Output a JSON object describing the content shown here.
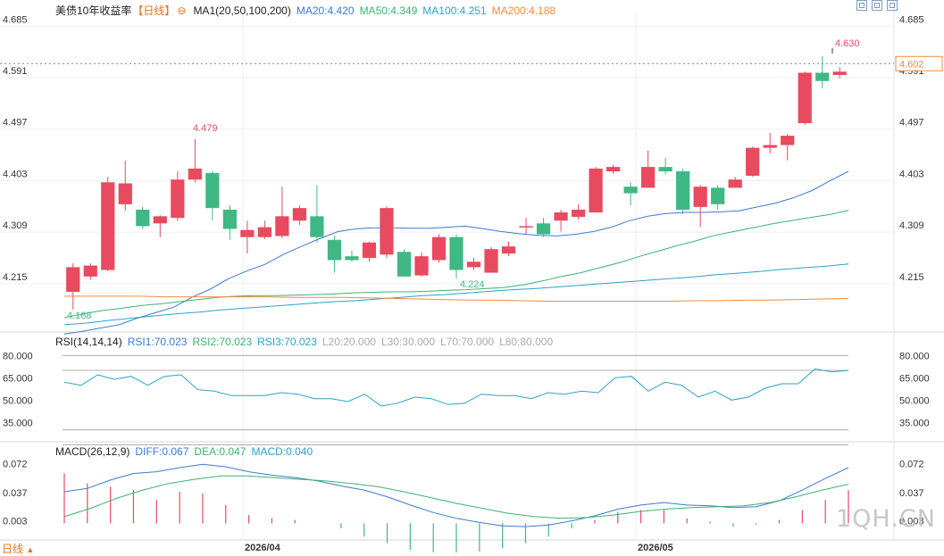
{
  "header": {
    "title": "美债10年收益率",
    "period": "【日线】",
    "ma_label": "MA1(20,50,100,200)",
    "ma20": "MA20:4.420",
    "ma50": "MA50:4.349",
    "ma100": "MA100:4.251",
    "ma200": "MA200:4.188"
  },
  "rsi": {
    "label": "RSI(14,14,14)",
    "rsi1": "RSI1:70.023",
    "rsi2": "RSI2:70.023",
    "rsi3": "RSI3:70.023",
    "l20": "L20:20.000",
    "l30": "L30:30.000",
    "l70": "L70:70.000",
    "l80": "L80:80.000"
  },
  "macd": {
    "label": "MACD(26,12,9)",
    "diff": "DIFF:0.067",
    "dea": "DEA:0.047",
    "macd": "MACD:0.040"
  },
  "footer": {
    "period": "日线",
    "watermark": "1QH.CN"
  },
  "colors": {
    "up": "#e84a5f",
    "down": "#3fb883",
    "ma20": "#3a7bd5",
    "ma50": "#3cb371",
    "ma100": "#2aa2c9",
    "ma200": "#f08c3c"
  },
  "chart_data": {
    "type": "candlestick",
    "price_axis": {
      "ticks": [
        "4.685",
        "4.591",
        "4.497",
        "4.403",
        "4.309",
        "4.215"
      ],
      "range": [
        4.13,
        4.71
      ]
    },
    "rsi_axis": {
      "ticks": [
        "80.000",
        "65.000",
        "50.000",
        "35.000"
      ]
    },
    "macd_axis": {
      "ticks": [
        "0.072",
        "0.037",
        "0.003"
      ]
    },
    "x_labels": [
      "2026/04",
      "2026/05"
    ],
    "current_price": "4.602",
    "annotations": {
      "high": "4.630",
      "high_mid": "4.479",
      "low_mid": "4.224",
      "low": "4.168"
    },
    "candles": [
      [
        4.2,
        4.245,
        4.168,
        4.252
      ],
      [
        4.228,
        4.248,
        4.222,
        4.252
      ],
      [
        4.24,
        4.4,
        4.238,
        4.41
      ],
      [
        4.36,
        4.398,
        4.348,
        4.44
      ],
      [
        4.35,
        4.32,
        4.315,
        4.355
      ],
      [
        4.325,
        4.338,
        4.3,
        4.34
      ],
      [
        4.335,
        4.405,
        4.33,
        4.42
      ],
      [
        4.405,
        4.425,
        4.4,
        4.479
      ],
      [
        4.417,
        4.353,
        4.33,
        4.42
      ],
      [
        4.35,
        4.315,
        4.295,
        4.358
      ],
      [
        4.3,
        4.313,
        4.27,
        4.33
      ],
      [
        4.3,
        4.318,
        4.296,
        4.33
      ],
      [
        4.302,
        4.338,
        4.298,
        4.392
      ],
      [
        4.33,
        4.353,
        4.322,
        4.358
      ],
      [
        4.338,
        4.3,
        4.29,
        4.395
      ],
      [
        4.295,
        4.258,
        4.235,
        4.303
      ],
      [
        4.265,
        4.258,
        4.255,
        4.275
      ],
      [
        4.262,
        4.29,
        4.255,
        4.292
      ],
      [
        4.268,
        4.353,
        4.262,
        4.356
      ],
      [
        4.273,
        4.228,
        4.228,
        4.278
      ],
      [
        4.23,
        4.265,
        4.228,
        4.272
      ],
      [
        4.258,
        4.3,
        4.253,
        4.305
      ],
      [
        4.3,
        4.24,
        4.224,
        4.305
      ],
      [
        4.245,
        4.255,
        4.24,
        4.262
      ],
      [
        4.235,
        4.278,
        4.235,
        4.282
      ],
      [
        4.27,
        4.283,
        4.265,
        4.292
      ],
      [
        4.32,
        4.32,
        4.305,
        4.335
      ],
      [
        4.325,
        4.305,
        4.3,
        4.335
      ],
      [
        4.33,
        4.345,
        4.31,
        4.35
      ],
      [
        4.337,
        4.35,
        4.332,
        4.36
      ],
      [
        4.345,
        4.425,
        4.345,
        4.428
      ],
      [
        4.42,
        4.428,
        4.415,
        4.432
      ],
      [
        4.392,
        4.38,
        4.358,
        4.4
      ],
      [
        4.39,
        4.428,
        4.39,
        4.458
      ],
      [
        4.428,
        4.42,
        4.415,
        4.445
      ],
      [
        4.42,
        4.35,
        4.342,
        4.425
      ],
      [
        4.355,
        4.392,
        4.318,
        4.395
      ],
      [
        4.39,
        4.36,
        4.35,
        4.395
      ],
      [
        4.39,
        4.405,
        4.39,
        4.41
      ],
      [
        4.412,
        4.463,
        4.41,
        4.465
      ],
      [
        4.463,
        4.468,
        4.453,
        4.49
      ],
      [
        4.468,
        4.485,
        4.44,
        4.488
      ],
      [
        4.508,
        4.6,
        4.505,
        4.602
      ],
      [
        4.6,
        4.585,
        4.572,
        4.63
      ],
      [
        4.596,
        4.602,
        4.59,
        4.61
      ]
    ],
    "series": [
      {
        "name": "MA20",
        "values": [
          4.123,
          4.128,
          4.134,
          4.14,
          4.152,
          4.162,
          4.172,
          4.19,
          4.205,
          4.224,
          4.238,
          4.25,
          4.268,
          4.283,
          4.297,
          4.31,
          4.315,
          4.317,
          4.317,
          4.316,
          4.316,
          4.318,
          4.32,
          4.315,
          4.31,
          4.306,
          4.303,
          4.302,
          4.305,
          4.31,
          4.318,
          4.33,
          4.338,
          4.343,
          4.345,
          4.345,
          4.346,
          4.348,
          4.355,
          4.362,
          4.372,
          4.385,
          4.403,
          4.42
        ]
      },
      {
        "name": "MA50",
        "values": [
          4.153,
          4.16,
          4.166,
          4.17,
          4.175,
          4.178,
          4.182,
          4.186,
          4.19,
          4.192,
          4.193,
          4.193,
          4.194,
          4.195,
          4.196,
          4.198,
          4.199,
          4.2,
          4.2,
          4.201,
          4.203,
          4.204,
          4.206,
          4.208,
          4.213,
          4.22,
          4.228,
          4.235,
          4.244,
          4.253,
          4.264,
          4.274,
          4.284,
          4.293,
          4.303,
          4.31,
          4.317,
          4.324,
          4.33,
          4.336,
          4.341,
          4.349
        ]
      },
      {
        "name": "MA100",
        "values": [
          4.14,
          4.143,
          4.148,
          4.152,
          4.156,
          4.16,
          4.163,
          4.167,
          4.17,
          4.173,
          4.176,
          4.179,
          4.182,
          4.184,
          4.187,
          4.19,
          4.193,
          4.195,
          4.198,
          4.201,
          4.204,
          4.206,
          4.209,
          4.212,
          4.215,
          4.218,
          4.221,
          4.224,
          4.227,
          4.231,
          4.234,
          4.237,
          4.241,
          4.244,
          4.247,
          4.251
        ]
      },
      {
        "name": "MA200",
        "values": [
          4.192,
          4.192,
          4.192,
          4.192,
          4.191,
          4.191,
          4.191,
          4.191,
          4.191,
          4.19,
          4.19,
          4.19,
          4.189,
          4.188,
          4.187,
          4.186,
          4.185,
          4.185,
          4.184,
          4.183,
          4.183,
          4.183,
          4.183,
          4.183,
          4.183,
          4.184,
          4.184,
          4.185,
          4.185,
          4.186,
          4.187,
          4.188
        ]
      },
      {
        "name": "RSI",
        "values": [
          62,
          60,
          67,
          64,
          66,
          60,
          66,
          67,
          57,
          56,
          53,
          53,
          53,
          55,
          54,
          51,
          51,
          49,
          54,
          46,
          48,
          52,
          51,
          47,
          48,
          54,
          53,
          53,
          51,
          55,
          54,
          56,
          55,
          65,
          66,
          56,
          62,
          60,
          52,
          56,
          50,
          52,
          58,
          61,
          61,
          71,
          69,
          70
        ]
      },
      {
        "name": "DIFF",
        "values": [
          0.038,
          0.042,
          0.052,
          0.06,
          0.062,
          0.067,
          0.071,
          0.068,
          0.062,
          0.058,
          0.055,
          0.051,
          0.045,
          0.04,
          0.032,
          0.022,
          0.013,
          0.006,
          0.001,
          -0.003,
          -0.004,
          -0.002,
          0.003,
          0.009,
          0.017,
          0.022,
          0.025,
          0.022,
          0.021,
          0.019,
          0.02,
          0.027,
          0.04,
          0.054,
          0.067
        ]
      },
      {
        "name": "DEA",
        "values": [
          0.008,
          0.018,
          0.03,
          0.04,
          0.048,
          0.053,
          0.057,
          0.057,
          0.055,
          0.053,
          0.051,
          0.048,
          0.044,
          0.038,
          0.031,
          0.024,
          0.018,
          0.012,
          0.008,
          0.006,
          0.007,
          0.01,
          0.014,
          0.017,
          0.019,
          0.02,
          0.021,
          0.025,
          0.032,
          0.04,
          0.047
        ]
      }
    ]
  }
}
